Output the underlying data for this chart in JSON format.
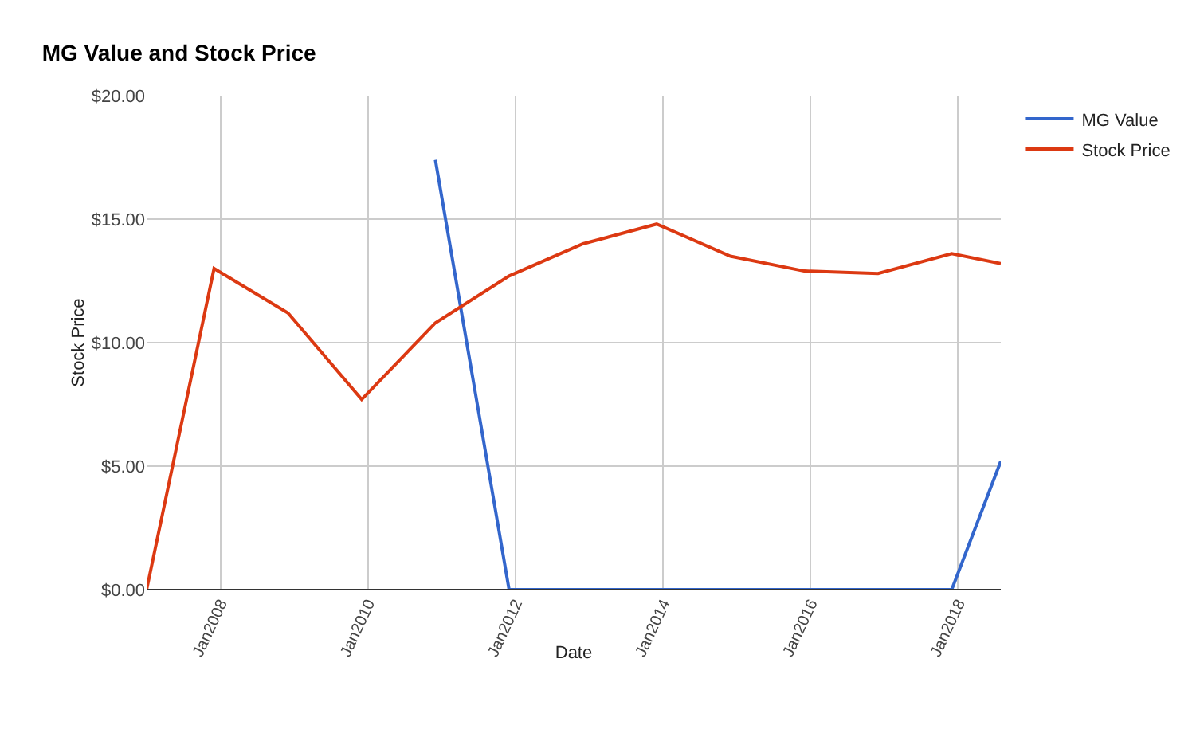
{
  "chart_data": {
    "type": "line",
    "title": "MG Value and Stock Price",
    "xlabel": "Date",
    "ylabel": "Stock Price",
    "x": [
      "2007-01",
      "2007-12",
      "2008-12",
      "2009-12",
      "2010-12",
      "2011-12",
      "2012-12",
      "2013-12",
      "2014-12",
      "2015-12",
      "2016-12",
      "2017-12",
      "2018-08"
    ],
    "series": [
      {
        "name": "MG Value",
        "color": "#3366cc",
        "values": [
          null,
          null,
          null,
          null,
          17.4,
          0,
          0,
          0,
          0,
          0,
          0,
          0,
          5.2
        ]
      },
      {
        "name": "Stock Price",
        "color": "#dc3912",
        "values": [
          0,
          13.0,
          11.2,
          7.7,
          10.8,
          12.7,
          14.0,
          14.8,
          13.5,
          12.9,
          12.8,
          13.6,
          13.2
        ]
      }
    ],
    "xlim": [
      "2007-01",
      "2018-08"
    ],
    "xticks": [
      {
        "value": "2008-01",
        "label": "Jan2008"
      },
      {
        "value": "2010-01",
        "label": "Jan2010"
      },
      {
        "value": "2012-01",
        "label": "Jan2012"
      },
      {
        "value": "2014-01",
        "label": "Jan2014"
      },
      {
        "value": "2016-01",
        "label": "Jan2016"
      },
      {
        "value": "2018-01",
        "label": "Jan2018"
      }
    ],
    "ylim": [
      0,
      20
    ],
    "yticks": [
      {
        "value": 0,
        "label": "$0.00"
      },
      {
        "value": 5,
        "label": "$5.00"
      },
      {
        "value": 10,
        "label": "$10.00"
      },
      {
        "value": 15,
        "label": "$15.00"
      },
      {
        "value": 20,
        "label": "$20.00"
      }
    ],
    "grid": true,
    "legend": "top right",
    "marker": "none",
    "line_style": "solid"
  }
}
